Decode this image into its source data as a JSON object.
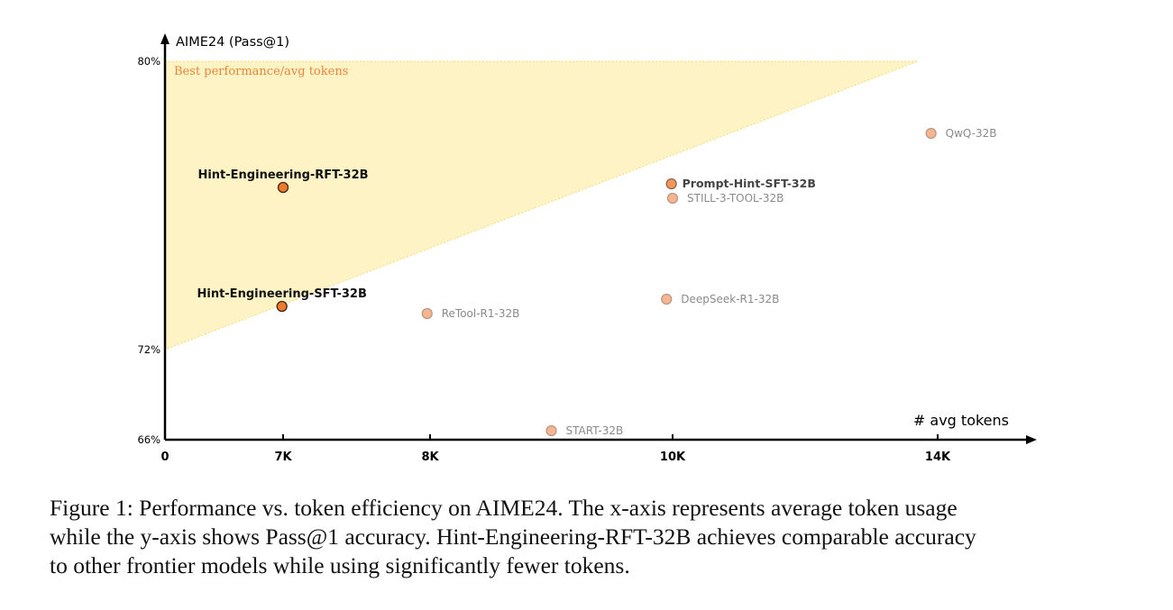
{
  "chart_data": {
    "type": "scatter",
    "title": "",
    "xlabel": "# avg tokens",
    "ylabel": "AIME24 (Pass@1)",
    "x_ticks": [
      {
        "label": "0",
        "value": 0
      },
      {
        "label": "7K",
        "value": 7000
      },
      {
        "label": "8K",
        "value": 8000
      },
      {
        "label": "10K",
        "value": 10000
      },
      {
        "label": "14K",
        "value": 14000
      }
    ],
    "y_ticks": [
      {
        "label": "66%",
        "value": 66
      },
      {
        "label": "72%",
        "value": 72
      },
      {
        "label": "80%",
        "value": 80
      }
    ],
    "xlim": [
      0,
      15500
    ],
    "ylim": [
      66,
      81
    ],
    "grid": false,
    "legend": "none",
    "region": {
      "label": "Best performance/avg tokens",
      "color": "#fdf3c4",
      "border_color": "#f5dc7a",
      "label_color": "#e8863a",
      "vertices": [
        [
          0,
          72
        ],
        [
          0,
          80
        ],
        [
          13700,
          80
        ]
      ]
    },
    "points": [
      {
        "name": "Hint-Engineering-RFT-32B",
        "x": 7000,
        "y": 76.5,
        "highlight": true,
        "label_position": "above"
      },
      {
        "name": "Hint-Engineering-SFT-32B",
        "x": 6930,
        "y": 73.2,
        "highlight": true,
        "label_position": "above"
      },
      {
        "name": "Prompt-Hint-SFT-32B",
        "x": 9990,
        "y": 76.6,
        "highlight": "medium",
        "label_position": "right"
      },
      {
        "name": "STILL-3-TOOL-32B",
        "x": 10000,
        "y": 76.2,
        "highlight": false,
        "label_position": "right"
      },
      {
        "name": "QwQ-32B",
        "x": 13900,
        "y": 78.0,
        "highlight": false,
        "label_position": "right"
      },
      {
        "name": "DeepSeek-R1-32B",
        "x": 9950,
        "y": 73.4,
        "highlight": false,
        "label_position": "right"
      },
      {
        "name": "ReTool-R1-32B",
        "x": 7980,
        "y": 73.0,
        "highlight": false,
        "label_position": "right"
      },
      {
        "name": "START-32B",
        "x": 9000,
        "y": 66.6,
        "highlight": false,
        "label_position": "right"
      }
    ],
    "colors": {
      "highlight_fill": "#f07a2a",
      "highlight_stroke": "#3a2a20",
      "medium_fill": "#f4935a",
      "medium_stroke": "#8a6a55",
      "normal_fill": "#f6b58e",
      "normal_stroke": "#b89a88",
      "highlight_label": "#111111",
      "medium_label": "#444444",
      "normal_label": "#8a8a8a"
    }
  },
  "caption": {
    "lines": [
      "Figure 1: Performance vs. token efficiency on AIME24. The x-axis represents average token usage",
      "while the y-axis shows Pass@1 accuracy. Hint-Engineering-RFT-32B achieves comparable accuracy",
      "to other frontier models while using significantly fewer tokens."
    ]
  }
}
